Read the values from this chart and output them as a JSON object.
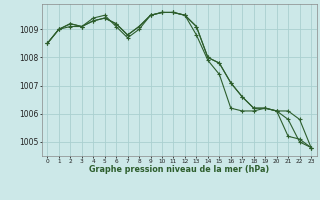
{
  "hours": [
    0,
    1,
    2,
    3,
    4,
    5,
    6,
    7,
    8,
    9,
    10,
    11,
    12,
    13,
    14,
    15,
    16,
    17,
    18,
    19,
    20,
    21,
    22,
    23
  ],
  "line1": [
    1008.5,
    1009.0,
    1009.2,
    1009.1,
    1009.3,
    1009.4,
    1009.2,
    1008.8,
    1009.1,
    1009.5,
    1009.6,
    1009.6,
    1009.5,
    1009.1,
    1008.0,
    1007.8,
    1007.1,
    1006.6,
    1006.2,
    1006.2,
    1006.1,
    1006.1,
    1005.8,
    1004.8
  ],
  "line2": [
    1008.5,
    1009.0,
    1009.2,
    1009.1,
    1009.3,
    1009.4,
    1009.2,
    1008.8,
    1009.1,
    1009.5,
    1009.6,
    1009.6,
    1009.5,
    1009.1,
    1008.0,
    1007.8,
    1007.1,
    1006.6,
    1006.2,
    1006.2,
    1006.1,
    1005.2,
    1005.1,
    1004.8
  ],
  "line3": [
    1008.5,
    1009.0,
    1009.1,
    1009.1,
    1009.4,
    1009.5,
    1009.1,
    1008.7,
    1009.0,
    1009.5,
    1009.6,
    1009.6,
    1009.5,
    1008.8,
    1007.9,
    1007.4,
    1006.2,
    1006.1,
    1006.1,
    1006.2,
    1006.1,
    1005.8,
    1005.0,
    1004.8
  ],
  "ylim": [
    1004.5,
    1009.9
  ],
  "yticks": [
    1005,
    1006,
    1007,
    1008,
    1009
  ],
  "bg_color": "#cce8e8",
  "line_color": "#2d5e2d",
  "grid_color": "#aad0d0",
  "xlabel": "Graphe pression niveau de la mer (hPa)",
  "marker": "+",
  "marker_size": 3,
  "line_width": 0.8
}
